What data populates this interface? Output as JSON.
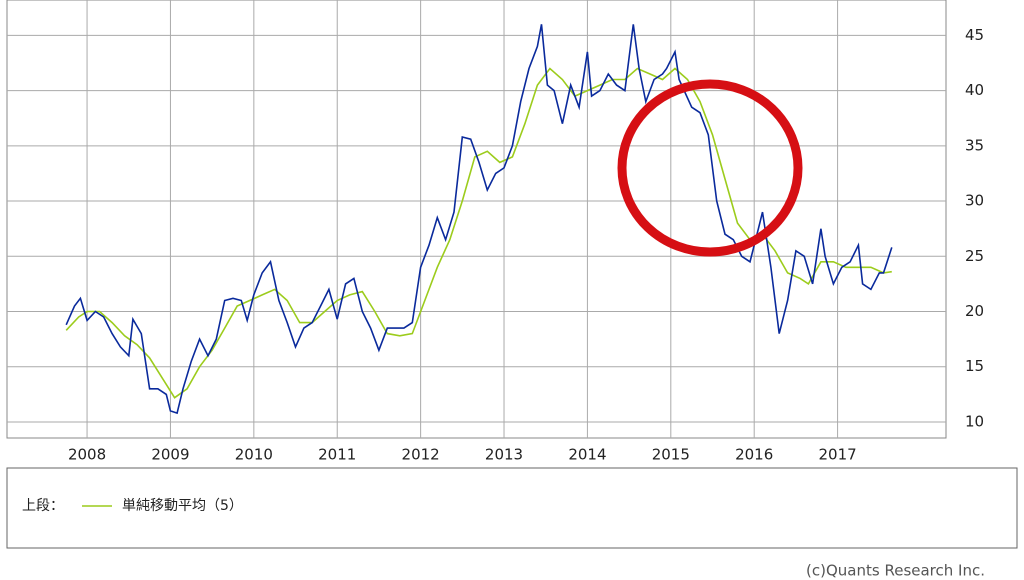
{
  "chart_data": {
    "type": "line",
    "legend_title": "上段：",
    "copyright": "(c)Quants Research Inc.",
    "xlim": [
      2007.04,
      2018.3
    ],
    "ylim": [
      8.55,
      48.2
    ],
    "xticks": [
      2008,
      2009,
      2010,
      2011,
      2012,
      2013,
      2014,
      2015,
      2016,
      2017
    ],
    "yticks": [
      10,
      15,
      20,
      25,
      30,
      35,
      40,
      45
    ],
    "grid": true,
    "series": [
      {
        "color": "#0a2a9c",
        "x": [
          2007.75,
          2007.85,
          2007.92,
          2008.0,
          2008.1,
          2008.2,
          2008.3,
          2008.4,
          2008.5,
          2008.55,
          2008.65,
          2008.75,
          2008.85,
          2008.95,
          2009.0,
          2009.08,
          2009.15,
          2009.25,
          2009.35,
          2009.45,
          2009.55,
          2009.65,
          2009.75,
          2009.85,
          2009.92,
          2010.0,
          2010.1,
          2010.2,
          2010.3,
          2010.4,
          2010.5,
          2010.6,
          2010.7,
          2010.8,
          2010.9,
          2011.0,
          2011.1,
          2011.2,
          2011.3,
          2011.4,
          2011.5,
          2011.6,
          2011.7,
          2011.8,
          2011.9,
          2012.0,
          2012.1,
          2012.2,
          2012.3,
          2012.4,
          2012.5,
          2012.6,
          2012.7,
          2012.8,
          2012.9,
          2013.0,
          2013.1,
          2013.2,
          2013.3,
          2013.4,
          2013.45,
          2013.52,
          2013.6,
          2013.7,
          2013.8,
          2013.9,
          2014.0,
          2014.05,
          2014.15,
          2014.25,
          2014.35,
          2014.45,
          2014.55,
          2014.62,
          2014.7,
          2014.8,
          2014.9,
          2014.95,
          2015.05,
          2015.1,
          2015.25,
          2015.35,
          2015.45,
          2015.55,
          2015.65,
          2015.75,
          2015.85,
          2015.95,
          2016.05,
          2016.1,
          2016.2,
          2016.3,
          2016.4,
          2016.5,
          2016.6,
          2016.7,
          2016.8,
          2016.85,
          2016.95,
          2017.05,
          2017.15,
          2017.25,
          2017.3,
          2017.4,
          2017.5,
          2017.55,
          2017.65
        ],
        "values": [
          18.8,
          20.5,
          21.2,
          19.2,
          20.0,
          19.5,
          18.0,
          16.8,
          16.0,
          19.3,
          18.0,
          13.0,
          13.0,
          12.5,
          11.0,
          10.8,
          13.0,
          15.5,
          17.5,
          16.0,
          17.5,
          21.0,
          21.2,
          21.0,
          19.2,
          21.5,
          23.5,
          24.5,
          21.0,
          19.0,
          16.8,
          18.5,
          19.0,
          20.5,
          22.0,
          19.3,
          22.5,
          23.0,
          20.0,
          18.5,
          16.5,
          18.5,
          18.5,
          18.5,
          19.0,
          24.0,
          26.0,
          28.5,
          26.5,
          29.0,
          35.8,
          35.6,
          33.5,
          31.0,
          32.5,
          33.0,
          35.0,
          39.0,
          42.0,
          44.0,
          46.0,
          40.5,
          40.0,
          37.0,
          40.5,
          38.5,
          43.5,
          39.5,
          40.0,
          41.5,
          40.5,
          40.0,
          46.0,
          42.0,
          39.0,
          41.0,
          41.5,
          42.0,
          43.5,
          41.0,
          38.5,
          38.0,
          36.0,
          30.0,
          27.0,
          26.5,
          25.0,
          24.5,
          27.5,
          29.0,
          24.0,
          18.0,
          21.0,
          25.5,
          25.0,
          22.5,
          27.5,
          25.0,
          22.5,
          24.0,
          24.5,
          26.0,
          22.5,
          22.0,
          23.5,
          23.5,
          25.8
        ]
      },
      {
        "name": "単純移動平均（5）",
        "color": "#9ccc1c",
        "x": [
          2007.75,
          2007.9,
          2008.0,
          2008.15,
          2008.3,
          2008.45,
          2008.6,
          2008.75,
          2008.9,
          2009.05,
          2009.2,
          2009.35,
          2009.5,
          2009.65,
          2009.8,
          2009.95,
          2010.1,
          2010.25,
          2010.4,
          2010.55,
          2010.7,
          2010.85,
          2011.0,
          2011.15,
          2011.3,
          2011.45,
          2011.6,
          2011.75,
          2011.9,
          2012.05,
          2012.2,
          2012.35,
          2012.5,
          2012.65,
          2012.8,
          2012.95,
          2013.1,
          2013.25,
          2013.4,
          2013.55,
          2013.7,
          2013.85,
          2014.0,
          2014.15,
          2014.3,
          2014.45,
          2014.6,
          2014.75,
          2014.9,
          2015.05,
          2015.2,
          2015.35,
          2015.5,
          2015.65,
          2015.8,
          2015.95,
          2016.1,
          2016.25,
          2016.4,
          2016.55,
          2016.65,
          2016.8,
          2016.95,
          2017.1,
          2017.25,
          2017.4,
          2017.55,
          2017.65
        ],
        "values": [
          18.3,
          19.5,
          20.0,
          20.0,
          19.0,
          17.8,
          17.0,
          15.8,
          14.0,
          12.2,
          13.0,
          15.0,
          16.5,
          18.5,
          20.5,
          21.0,
          21.5,
          22.0,
          21.0,
          19.0,
          19.0,
          20.0,
          21.0,
          21.5,
          21.8,
          20.0,
          18.0,
          17.8,
          18.0,
          21.0,
          24.0,
          26.5,
          30.0,
          34.0,
          34.5,
          33.5,
          34.0,
          37.0,
          40.5,
          42.0,
          41.0,
          39.5,
          40.0,
          40.5,
          41.0,
          41.0,
          42.0,
          41.5,
          41.0,
          42.0,
          41.0,
          39.0,
          36.0,
          32.0,
          28.0,
          26.5,
          27.0,
          25.5,
          23.5,
          23.0,
          22.5,
          24.5,
          24.5,
          24.0,
          24.0,
          24.0,
          23.5,
          23.6
        ]
      }
    ]
  }
}
